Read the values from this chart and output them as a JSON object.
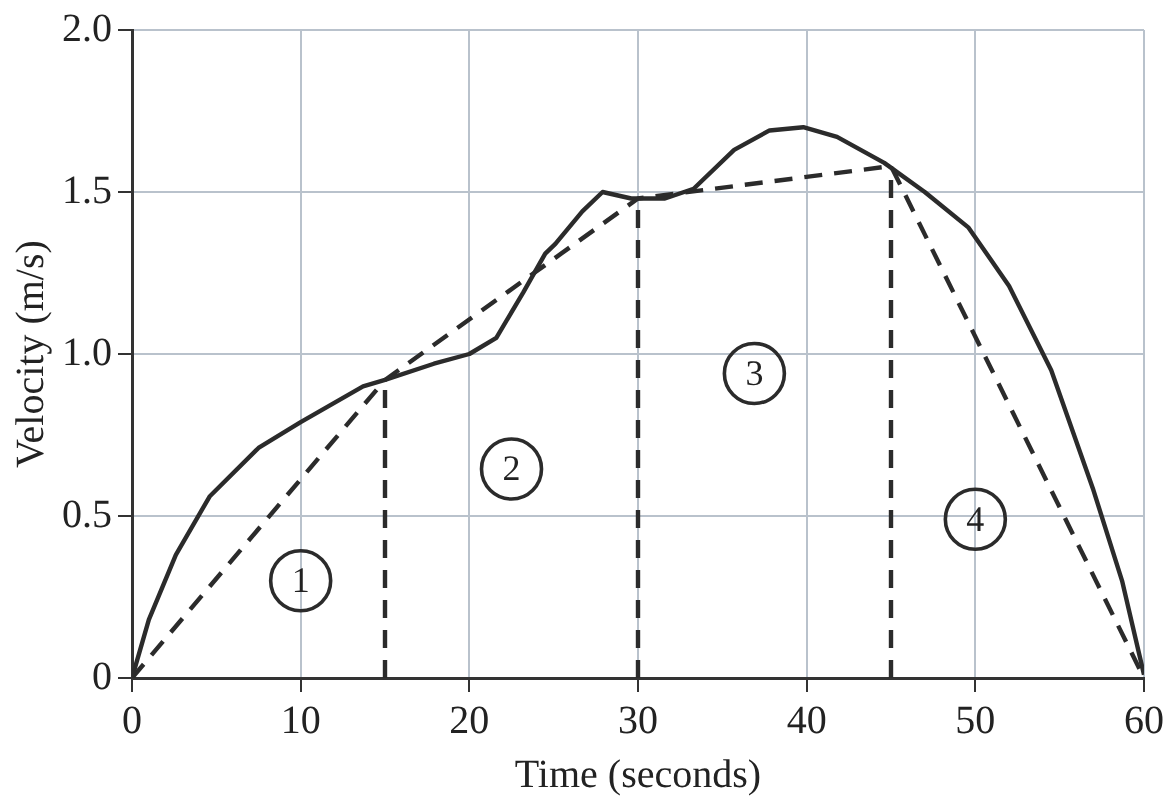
{
  "chart_data": {
    "type": "line",
    "xlabel": "Time (seconds)",
    "ylabel": "Velocity (m/s)",
    "xlim": [
      0,
      60
    ],
    "xticks": [
      0,
      10,
      20,
      30,
      40,
      50,
      60
    ],
    "ylim": [
      0,
      2
    ],
    "yticks": [
      0,
      {
        "value": 0.5,
        "label": "0.5"
      },
      {
        "value": 1,
        "label": "1.0"
      },
      {
        "value": 1.5,
        "label": "1.5"
      },
      {
        "value": 2,
        "label": "2.0"
      }
    ],
    "grid": true,
    "marker": "none",
    "series": [
      {
        "color": "#2b2b2b",
        "line_style": "solid",
        "x": [
          0,
          1,
          2.6,
          4.6,
          7.5,
          10,
          13.7,
          15,
          17.9,
          20,
          21.6,
          23.2,
          24.5,
          25.1,
          26.7,
          27.9,
          29.6,
          31.6,
          33.3,
          35.7,
          37.8,
          39.8,
          41.8,
          44.6,
          47,
          49.6,
          52,
          54.5,
          57,
          58.7,
          60
        ],
        "values": [
          0,
          0.18,
          0.38,
          0.56,
          0.71,
          0.79,
          0.9,
          0.92,
          0.97,
          1.0,
          1.05,
          1.19,
          1.31,
          1.34,
          1.44,
          1.5,
          1.48,
          1.48,
          1.51,
          1.63,
          1.69,
          1.7,
          1.67,
          1.59,
          1.5,
          1.39,
          1.21,
          0.95,
          0.58,
          0.3,
          0.01
        ]
      },
      {
        "color": "#2b2b2b",
        "line_style": "dashed",
        "x": [
          0,
          15,
          30,
          45,
          60
        ],
        "values": [
          0,
          0.92,
          1.48,
          1.58,
          0
        ]
      },
      {
        "color": "#2b2b2b",
        "line_style": "dashed",
        "x": [
          15,
          15
        ],
        "values": [
          0,
          0.92
        ]
      },
      {
        "color": "#2b2b2b",
        "line_style": "dashed",
        "x": [
          30,
          30
        ],
        "values": [
          0,
          1.48
        ]
      },
      {
        "color": "#2b2b2b",
        "line_style": "dashed",
        "x": [
          45,
          45
        ],
        "values": [
          0,
          1.58
        ]
      }
    ],
    "annotations": [
      {
        "text": "1",
        "x": 10,
        "y": 0.3
      },
      {
        "text": "2",
        "x": 22.5,
        "y": 0.645
      },
      {
        "text": "3",
        "x": 36.9,
        "y": 0.94
      },
      {
        "text": "4",
        "x": 50,
        "y": 0.49
      }
    ]
  }
}
